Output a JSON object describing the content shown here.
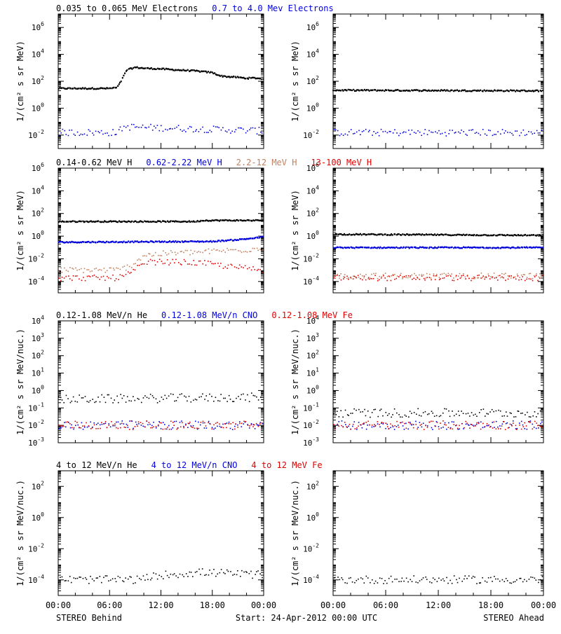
{
  "chart_data": {
    "type": "scatter",
    "time_axis": {
      "start": "24-Apr-2012 00:00",
      "end": "25-Apr-2012 00:00",
      "tick_labels": [
        "00:00",
        "06:00",
        "12:00",
        "18:00",
        "00:00"
      ]
    },
    "footer": {
      "left": "STEREO Behind",
      "center": "Start: 24-Apr-2012 00:00 UTC",
      "right": "STEREO Ahead"
    },
    "colors": {
      "black": "#000000",
      "blue": "#0000dd",
      "tan": "#c08060",
      "red": "#e00000"
    },
    "rows": [
      {
        "legend": [
          {
            "text": "0.035 to 0.065 MeV Electrons",
            "color": "#000000"
          },
          {
            "text": "0.7 to 4.0 Mev Electrons",
            "color": "#0000dd"
          }
        ],
        "ylabel": "1/(cm² s sr MeV)",
        "yscale": "log",
        "ylim": [
          0.001,
          10000000
        ],
        "yticks": [
          {
            "base": "10",
            "exp": "6"
          },
          {
            "base": "10",
            "exp": "4"
          },
          {
            "base": "10",
            "exp": "2"
          },
          {
            "base": "10",
            "exp": "0"
          },
          {
            "base": "10",
            "exp": "-2"
          }
        ],
        "ytick_values": [
          1000000,
          10000,
          100,
          1,
          0.01
        ],
        "panels": [
          {
            "name": "STEREO Behind",
            "series": [
              {
                "color": "#000000",
                "pattern": "line",
                "x": [
                  0,
                  6,
                  6.9,
                  7.4,
                  8,
                  9,
                  10,
                  12,
                  14,
                  16,
                  17,
                  18,
                  19,
                  20,
                  21,
                  22,
                  23,
                  24
                ],
                "y": [
                  30,
                  30,
                  35,
                  120,
                  700,
                  1100,
                  950,
                  850,
                  700,
                  600,
                  520,
                  450,
                  250,
                  220,
                  200,
                  170,
                  180,
                  150
                ]
              },
              {
                "color": "#0000dd",
                "pattern": "scatter",
                "x": [
                  0,
                  7,
                  7.5,
                  8,
                  24
                ],
                "y": [
                  0.015,
                  0.015,
                  0.035,
                  0.04,
                  0.02
                ]
              }
            ]
          },
          {
            "name": "STEREO Ahead",
            "series": [
              {
                "color": "#000000",
                "pattern": "line",
                "x": [
                  0,
                  24
                ],
                "y": [
                  22,
                  20
                ]
              },
              {
                "color": "#0000dd",
                "pattern": "scatter",
                "x": [
                  0,
                  24
                ],
                "y": [
                  0.015,
                  0.015
                ]
              }
            ]
          }
        ]
      },
      {
        "legend": [
          {
            "text": "0.14-0.62 MeV H",
            "color": "#000000"
          },
          {
            "text": "0.62-2.22 MeV H",
            "color": "#0000dd"
          },
          {
            "text": "2.2-12 MeV H",
            "color": "#c08060"
          },
          {
            "text": "13-100 MeV H",
            "color": "#e00000"
          }
        ],
        "ylabel": "1/(cm² s sr MeV)",
        "yscale": "log",
        "ylim": [
          1e-05,
          1000000
        ],
        "yticks": [
          {
            "base": "10",
            "exp": "6"
          },
          {
            "base": "10",
            "exp": "4"
          },
          {
            "base": "10",
            "exp": "2"
          },
          {
            "base": "10",
            "exp": "0"
          },
          {
            "base": "10",
            "exp": "-2"
          },
          {
            "base": "10",
            "exp": "-4"
          }
        ],
        "ytick_values": [
          1000000,
          10000,
          100,
          1,
          0.01,
          0.0001
        ],
        "panels": [
          {
            "name": "STEREO Behind",
            "series": [
              {
                "color": "#000000",
                "pattern": "line",
                "x": [
                  0,
                  16,
                  17,
                  24
                ],
                "y": [
                  20,
                  20,
                  25,
                  25
                ]
              },
              {
                "color": "#0000dd",
                "pattern": "line",
                "x": [
                  0,
                  18,
                  21,
                  23,
                  24
                ],
                "y": [
                  0.3,
                  0.35,
                  0.5,
                  0.7,
                  0.9
                ]
              },
              {
                "color": "#c08060",
                "pattern": "scatter",
                "x": [
                  0,
                  7,
                  8.3,
                  9,
                  10,
                  13,
                  17,
                  19,
                  22,
                  24
                ],
                "y": [
                  0.001,
                  0.001,
                  0.002,
                  0.005,
                  0.02,
                  0.03,
                  0.04,
                  0.05,
                  0.06,
                  0.1
                ]
              },
              {
                "color": "#e00000",
                "pattern": "scatter",
                "x": [
                  0,
                  7,
                  8.5,
                  9.5,
                  10.5,
                  14,
                  17,
                  20,
                  24
                ],
                "y": [
                  0.0002,
                  0.0002,
                  0.0005,
                  0.002,
                  0.005,
                  0.005,
                  0.004,
                  0.002,
                  0.001
                ]
              }
            ]
          },
          {
            "name": "STEREO Ahead",
            "series": [
              {
                "color": "#000000",
                "pattern": "line",
                "x": [
                  0,
                  24
                ],
                "y": [
                  1.5,
                  1.2
                ]
              },
              {
                "color": "#0000dd",
                "pattern": "line",
                "x": [
                  0,
                  24
                ],
                "y": [
                  0.1,
                  0.1
                ]
              },
              {
                "color": "#c08060",
                "pattern": "scatter",
                "x": [
                  0,
                  24
                ],
                "y": [
                  0.0003,
                  0.0003
                ]
              },
              {
                "color": "#e00000",
                "pattern": "scatter",
                "x": [
                  0,
                  24
                ],
                "y": [
                  0.0002,
                  0.0002
                ]
              }
            ]
          }
        ]
      },
      {
        "legend": [
          {
            "text": "0.12-1.08 MeV/n He",
            "color": "#000000"
          },
          {
            "text": "0.12-1.08 MeV/n CNO",
            "color": "#0000dd"
          },
          {
            "text": "0.12-1.08 MeV Fe",
            "color": "#e00000"
          }
        ],
        "ylabel": "1/(cm² s sr MeV/nuc.)",
        "yscale": "log",
        "ylim": [
          0.001,
          10000
        ],
        "yticks": [
          {
            "base": "10",
            "exp": "4"
          },
          {
            "base": "10",
            "exp": "3"
          },
          {
            "base": "10",
            "exp": "2"
          },
          {
            "base": "10",
            "exp": "1"
          },
          {
            "base": "10",
            "exp": "0"
          },
          {
            "base": "10",
            "exp": "-1"
          },
          {
            "base": "10",
            "exp": "-2"
          },
          {
            "base": "10",
            "exp": "-3"
          }
        ],
        "ytick_values": [
          10000,
          1000,
          100,
          10,
          1,
          0.1,
          0.01,
          0.001
        ],
        "panels": [
          {
            "name": "STEREO Behind",
            "series": [
              {
                "color": "#000000",
                "pattern": "scatter",
                "x": [
                  0,
                  24
                ],
                "y": [
                  0.3,
                  0.4
                ]
              },
              {
                "color": "#0000dd",
                "pattern": "scatter",
                "x": [
                  0,
                  24
                ],
                "y": [
                  0.01,
                  0.01
                ]
              },
              {
                "color": "#e00000",
                "pattern": "scatter",
                "x": [
                  0,
                  24
                ],
                "y": [
                  0.01,
                  0.01
                ]
              }
            ]
          },
          {
            "name": "STEREO Ahead",
            "series": [
              {
                "color": "#000000",
                "pattern": "scatter",
                "x": [
                  0,
                  24
                ],
                "y": [
                  0.05,
                  0.05
                ]
              },
              {
                "color": "#0000dd",
                "pattern": "scatter",
                "x": [
                  0,
                  24
                ],
                "y": [
                  0.01,
                  0.01
                ]
              },
              {
                "color": "#e00000",
                "pattern": "scatter",
                "x": [
                  0,
                  24
                ],
                "y": [
                  0.01,
                  0.01
                ]
              }
            ]
          }
        ]
      },
      {
        "legend": [
          {
            "text": "4 to 12 MeV/n He",
            "color": "#000000"
          },
          {
            "text": "4 to 12 MeV/n CNO",
            "color": "#0000dd"
          },
          {
            "text": "4 to 12 MeV Fe",
            "color": "#e00000"
          }
        ],
        "ylabel": "1/(cm² s sr MeV/nuc.)",
        "yscale": "log",
        "ylim": [
          1e-05,
          1000
        ],
        "yticks": [
          {
            "base": "10",
            "exp": "2"
          },
          {
            "base": "10",
            "exp": "0"
          },
          {
            "base": "10",
            "exp": "-2"
          },
          {
            "base": "10",
            "exp": "-4"
          }
        ],
        "ytick_values": [
          100,
          1,
          0.01,
          0.0001
        ],
        "panels": [
          {
            "name": "STEREO Behind",
            "series": [
              {
                "color": "#000000",
                "pattern": "scatter",
                "x": [
                  0,
                  9.5,
                  12,
                  17,
                  24
                ],
                "y": [
                  0.0001,
                  0.0001,
                  0.0002,
                  0.0003,
                  0.0002
                ]
              }
            ]
          },
          {
            "name": "STEREO Ahead",
            "series": [
              {
                "color": "#000000",
                "pattern": "scatter",
                "x": [
                  0,
                  24
                ],
                "y": [
                  0.0001,
                  0.0001
                ]
              }
            ]
          }
        ]
      }
    ]
  }
}
